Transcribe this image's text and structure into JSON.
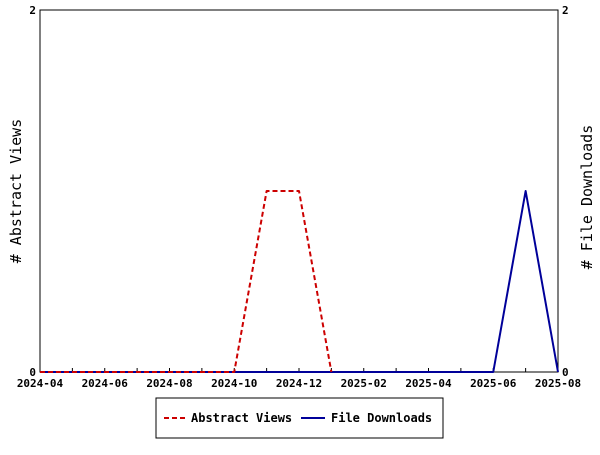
{
  "chart_data": {
    "type": "line",
    "title": "",
    "ylabel_left": "# Abstract Views",
    "ylabel_right": "# File Downloads",
    "x_tick_labels": [
      "2024-04",
      "2024-06",
      "2024-08",
      "2024-10",
      "2024-12",
      "2025-02",
      "2025-04",
      "2025-06",
      "2025-08"
    ],
    "x_range": [
      "2024-04",
      "2025-08"
    ],
    "y_left_range": [
      0,
      2
    ],
    "y_right_range": [
      0,
      2
    ],
    "y_left_ticks": [
      "0",
      "2"
    ],
    "y_right_ticks": [
      "0",
      "2"
    ],
    "legend_position": "bottom-center",
    "grid": false,
    "series": [
      {
        "name": "Abstract Views",
        "axis": "left",
        "color": "#cc0000",
        "style": "dashed",
        "points": [
          {
            "x": "2024-04",
            "y": 0
          },
          {
            "x": "2024-05",
            "y": 0
          },
          {
            "x": "2024-06",
            "y": 0
          },
          {
            "x": "2024-07",
            "y": 0
          },
          {
            "x": "2024-08",
            "y": 0
          },
          {
            "x": "2024-09",
            "y": 0
          },
          {
            "x": "2024-10",
            "y": 0
          },
          {
            "x": "2024-11",
            "y": 1
          },
          {
            "x": "2024-12",
            "y": 1
          },
          {
            "x": "2025-01",
            "y": 0
          }
        ]
      },
      {
        "name": "File Downloads",
        "axis": "right",
        "color": "#000099",
        "style": "solid",
        "points": [
          {
            "x": "2024-04",
            "y": 0
          },
          {
            "x": "2024-05",
            "y": 0
          },
          {
            "x": "2024-06",
            "y": 0
          },
          {
            "x": "2024-07",
            "y": 0
          },
          {
            "x": "2024-08",
            "y": 0
          },
          {
            "x": "2024-09",
            "y": 0
          },
          {
            "x": "2024-10",
            "y": 0
          },
          {
            "x": "2024-11",
            "y": 0
          },
          {
            "x": "2024-12",
            "y": 0
          },
          {
            "x": "2025-01",
            "y": 0
          },
          {
            "x": "2025-02",
            "y": 0
          },
          {
            "x": "2025-03",
            "y": 0
          },
          {
            "x": "2025-04",
            "y": 0
          },
          {
            "x": "2025-05",
            "y": 0
          },
          {
            "x": "2025-06",
            "y": 0
          },
          {
            "x": "2025-07",
            "y": 1
          },
          {
            "x": "2025-08",
            "y": 0
          }
        ]
      }
    ]
  }
}
